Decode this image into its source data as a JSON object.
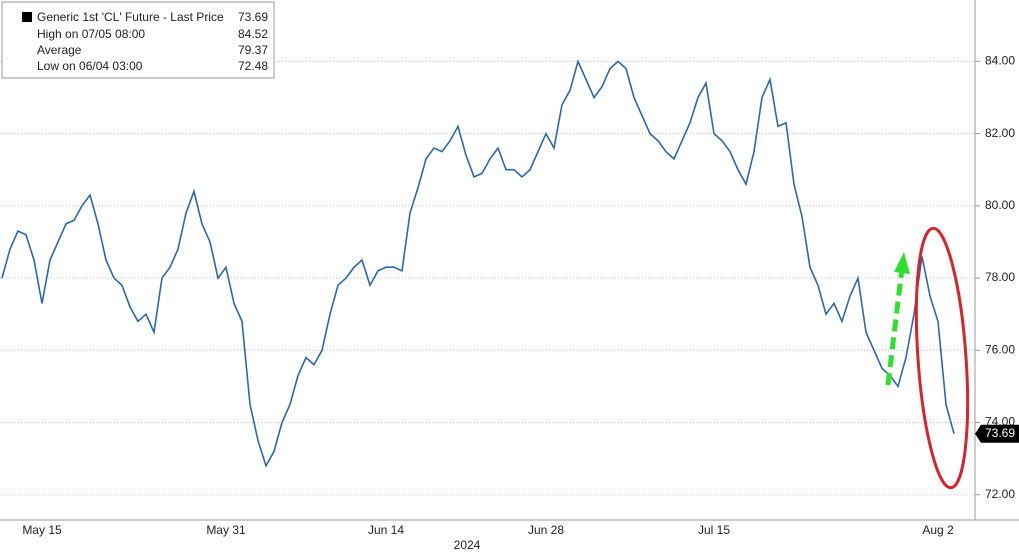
{
  "chart_data": {
    "type": "line",
    "legend": {
      "title": "Generic 1st 'CL' Future - Last Price",
      "last_price": 73.69,
      "stats": [
        {
          "label": "High on 07/05 08:00",
          "value": 84.52
        },
        {
          "label": "Average",
          "value": 79.37
        },
        {
          "label": "Low on 06/04 03:00",
          "value": 72.48
        }
      ]
    },
    "x_label": "2024",
    "categories": [
      null,
      null,
      null,
      null,
      null,
      "May 15",
      null,
      null,
      null,
      null,
      null,
      null,
      null,
      null,
      null,
      null,
      null,
      null,
      null,
      null,
      null,
      null,
      null,
      null,
      null,
      null,
      null,
      null,
      "May 31",
      null,
      null,
      null,
      null,
      null,
      null,
      null,
      null,
      null,
      null,
      null,
      null,
      null,
      null,
      null,
      null,
      null,
      null,
      null,
      "Jun 14",
      null,
      null,
      null,
      null,
      null,
      null,
      null,
      null,
      null,
      null,
      null,
      null,
      null,
      null,
      null,
      null,
      null,
      null,
      null,
      "Jun 28",
      null,
      null,
      null,
      null,
      null,
      null,
      null,
      null,
      null,
      null,
      null,
      null,
      null,
      null,
      null,
      null,
      null,
      null,
      null,
      null,
      "Jul 15",
      null,
      null,
      null,
      null,
      null,
      null,
      null,
      null,
      null,
      null,
      null,
      null,
      null,
      null,
      null,
      null,
      null,
      null,
      null,
      null,
      null,
      null,
      null,
      null,
      null,
      null,
      null,
      "Aug 2",
      null,
      null
    ],
    "values": [
      78.0,
      78.8,
      79.3,
      79.2,
      78.5,
      77.3,
      78.5,
      79.0,
      79.5,
      79.6,
      80.0,
      80.3,
      79.5,
      78.5,
      78.0,
      77.8,
      77.2,
      76.8,
      77.0,
      76.5,
      78.0,
      78.3,
      78.8,
      79.8,
      80.4,
      79.5,
      79.0,
      78.0,
      78.3,
      77.3,
      76.8,
      74.5,
      73.5,
      72.8,
      73.2,
      74.0,
      74.5,
      75.3,
      75.8,
      75.6,
      76.0,
      77.0,
      77.8,
      78.0,
      78.3,
      78.5,
      77.8,
      78.2,
      78.3,
      78.3,
      78.2,
      79.8,
      80.5,
      81.3,
      81.6,
      81.5,
      81.8,
      82.2,
      81.4,
      80.8,
      80.9,
      81.3,
      81.6,
      81.0,
      81.0,
      80.8,
      81.0,
      81.5,
      82.0,
      81.6,
      82.8,
      83.2,
      84.0,
      83.5,
      83.0,
      83.3,
      83.8,
      84.0,
      83.8,
      83.0,
      82.5,
      82.0,
      81.8,
      81.5,
      81.3,
      81.8,
      82.3,
      83.0,
      83.4,
      82.0,
      81.8,
      81.5,
      81.0,
      80.6,
      81.5,
      83.0,
      83.5,
      82.2,
      82.3,
      80.6,
      79.7,
      78.3,
      77.8,
      77.0,
      77.3,
      76.8,
      77.5,
      78.0,
      76.5,
      76.0,
      75.5,
      75.3,
      75.0,
      75.8,
      77.0,
      78.6,
      77.5,
      76.8,
      74.5,
      73.69
    ],
    "color": "#2a68b0",
    "ylim": [
      71.3,
      85.7
    ],
    "yticks": [
      {
        "value": 72,
        "label": "72.00"
      },
      {
        "value": 74,
        "label": "74.00"
      },
      {
        "value": 76,
        "label": "76.00"
      },
      {
        "value": 78,
        "label": "78.00"
      },
      {
        "value": 80,
        "label": "80.00"
      },
      {
        "value": 82,
        "label": "82.00"
      },
      {
        "value": 84,
        "label": "84.00"
      }
    ],
    "grid": true
  }
}
